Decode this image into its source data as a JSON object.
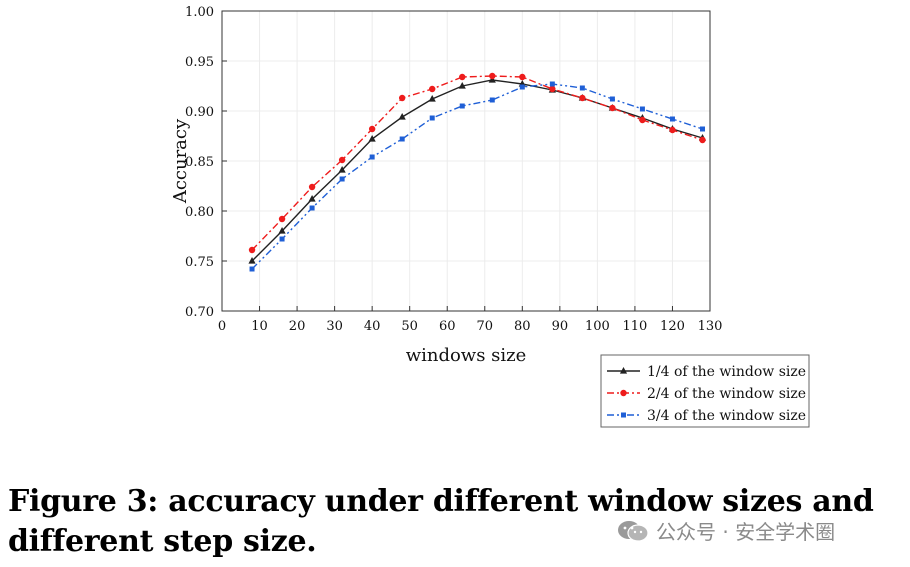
{
  "chart_data": {
    "type": "line",
    "title": "",
    "xlabel": "windows size",
    "ylabel": "Accuracy",
    "xlim": [
      0,
      130
    ],
    "ylim": [
      0.7,
      1.0
    ],
    "x_ticks": [
      "0",
      "10",
      "20",
      "30",
      "40",
      "50",
      "60",
      "70",
      "80",
      "90",
      "100",
      "110",
      "120",
      "130"
    ],
    "y_ticks": [
      "0.70",
      "0.75",
      "0.80",
      "0.85",
      "0.90",
      "0.95",
      "1.00"
    ],
    "grid": true,
    "legend_position": "bottom-right outside",
    "series": [
      {
        "name": "1/4 of the window size",
        "color": "#222222",
        "marker": "triangle",
        "dash": "solid",
        "x": [
          8,
          16,
          24,
          32,
          40,
          48,
          56,
          64,
          72,
          80,
          88,
          96,
          104,
          112,
          120,
          128
        ],
        "y": [
          0.75,
          0.78,
          0.812,
          0.841,
          0.872,
          0.894,
          0.912,
          0.925,
          0.931,
          0.927,
          0.921,
          0.913,
          0.903,
          0.893,
          0.882,
          0.873
        ]
      },
      {
        "name": "2/4 of the window size",
        "color": "#ee1c1c",
        "marker": "circle",
        "dash": "dashdot",
        "x": [
          8,
          16,
          24,
          32,
          40,
          48,
          56,
          64,
          72,
          80,
          88,
          96,
          104,
          112,
          120,
          128
        ],
        "y": [
          0.761,
          0.792,
          0.824,
          0.851,
          0.882,
          0.913,
          0.922,
          0.934,
          0.935,
          0.934,
          0.922,
          0.913,
          0.903,
          0.891,
          0.881,
          0.871
        ]
      },
      {
        "name": "3/4 of the window size",
        "color": "#1f5fd6",
        "marker": "square",
        "dash": "dashdotdot",
        "x": [
          8,
          16,
          24,
          32,
          40,
          48,
          56,
          64,
          72,
          80,
          88,
          96,
          104,
          112,
          120,
          128
        ],
        "y": [
          0.742,
          0.772,
          0.803,
          0.832,
          0.854,
          0.872,
          0.893,
          0.905,
          0.911,
          0.924,
          0.927,
          0.923,
          0.912,
          0.902,
          0.892,
          0.882
        ]
      }
    ]
  },
  "caption": "Figure 3: accuracy under different window sizes and different step size.",
  "watermark": "公众号 · 安全学术圈"
}
